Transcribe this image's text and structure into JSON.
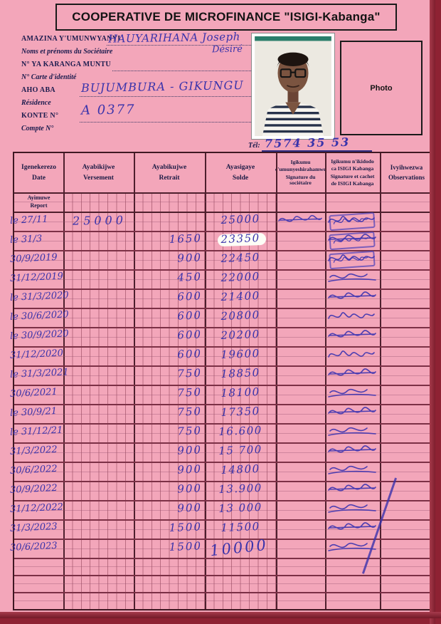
{
  "page": {
    "title": "COOPERATIVE DE MICROFINANCE \"ISIGI-Kabanga\"",
    "colors": {
      "paper": "#f3a6ba",
      "ink": "#3a33ab",
      "grid": "#7c3046",
      "label": "#1b1b4e",
      "scan_edge": "#8e2233"
    }
  },
  "member": {
    "fields": [
      {
        "label_rn": "AMAZINA Y'UMUNWYANYI",
        "label_fr": "Noms et prénoms du Sociétaire",
        "value": "HAUYARIHANA Joseph",
        "value2": "Désiré"
      },
      {
        "label_rn": "N° YA KARANGA MUNTU",
        "label_fr": "N° Carte d'identité",
        "value": ""
      },
      {
        "label_rn": "AHO ABA",
        "label_fr": "Résidence",
        "value": "BUJUMBURA - GIKUNGU"
      },
      {
        "label_rn": "KONTE N°",
        "label_fr": "Compte N°",
        "value": "A 0377"
      }
    ],
    "tel_label": "Tél:",
    "tel_value": "7574 35 53",
    "photo_label": "Photo"
  },
  "table": {
    "headers": [
      {
        "rn": "Igenekerezo",
        "fr": "Date"
      },
      {
        "rn": "Ayabikijwe",
        "fr": "Versement"
      },
      {
        "rn": "Ayabikujwe",
        "fr": "Retrait"
      },
      {
        "rn": "Ayasigaye",
        "fr": "Solde"
      },
      {
        "lines": [
          "Igikumu",
          "c'umunyeshirahamwe",
          "Signature du sociétaire"
        ]
      },
      {
        "lines": [
          "Igikumu n'ikidodo",
          "ca ISIGI Kabanga",
          "Signature et cachet",
          "de ISIGI Kabanga"
        ]
      },
      {
        "rn": "Ivyihwezwa",
        "fr": "Observations"
      }
    ],
    "subheader": {
      "rn": "Ayimuwe",
      "fr": "Report"
    },
    "rows": [
      {
        "date": "le 27/11",
        "versement": "25000",
        "retrait": "",
        "solde": "25000",
        "sig_member": true,
        "stamp": true,
        "sig_isigi": 1
      },
      {
        "date": "le 31/3",
        "versement": "",
        "retrait": "1650",
        "solde": "23350",
        "whiteout": true,
        "stamp": true,
        "sig_isigi": 2
      },
      {
        "date": "30/9/2019",
        "versement": "",
        "retrait": "900",
        "solde": "22450",
        "stamp": true,
        "sig_isigi": 1
      },
      {
        "date": "31/12/2019",
        "versement": "",
        "retrait": "450",
        "solde": "22000",
        "sig_isigi": 3
      },
      {
        "date": "le 31/3/2020",
        "versement": "",
        "retrait": "600",
        "solde": "21400",
        "sig_isigi": 2
      },
      {
        "date": "le 30/6/2020",
        "versement": "",
        "retrait": "600",
        "solde": "20800",
        "sig_isigi": 1
      },
      {
        "date": "le 30/9/2020",
        "versement": "",
        "retrait": "600",
        "solde": "20200",
        "sig_isigi": 2
      },
      {
        "date": "31/12/2020",
        "versement": "",
        "retrait": "600",
        "solde": "19600",
        "sig_isigi": 1
      },
      {
        "date": "le 31/3/2021",
        "versement": "",
        "retrait": "750",
        "solde": "18850",
        "sig_isigi": 2
      },
      {
        "date": "30/6/2021",
        "versement": "",
        "retrait": "750",
        "solde": "18100",
        "sig_isigi": 3
      },
      {
        "date": "le 30/9/21",
        "versement": "",
        "retrait": "750",
        "solde": "17350",
        "sig_isigi": 2
      },
      {
        "date": "le 31/12/21",
        "versement": "",
        "retrait": "750",
        "solde": "16.600",
        "sig_isigi": 3
      },
      {
        "date": "31/3/2022",
        "versement": "",
        "retrait": "900",
        "solde": "15 700",
        "sig_isigi": 2
      },
      {
        "date": "30/6/2022",
        "versement": "",
        "retrait": "900",
        "solde": "14800",
        "sig_isigi": 3
      },
      {
        "date": "30/9/2022",
        "versement": "",
        "retrait": "900",
        "solde": "13.900",
        "sig_isigi": 2
      },
      {
        "date": "31/12/2022",
        "versement": "",
        "retrait": "900",
        "solde": "13 000",
        "sig_isigi": 3
      },
      {
        "date": "31/3/2023",
        "versement": "",
        "retrait": "1500",
        "solde": "11500",
        "sig_isigi": 2
      },
      {
        "date": "30/6/2023",
        "versement": "",
        "retrait": "1500",
        "solde": "10000",
        "big": true,
        "sig_isigi": 3
      }
    ],
    "empty_rows": 3
  }
}
